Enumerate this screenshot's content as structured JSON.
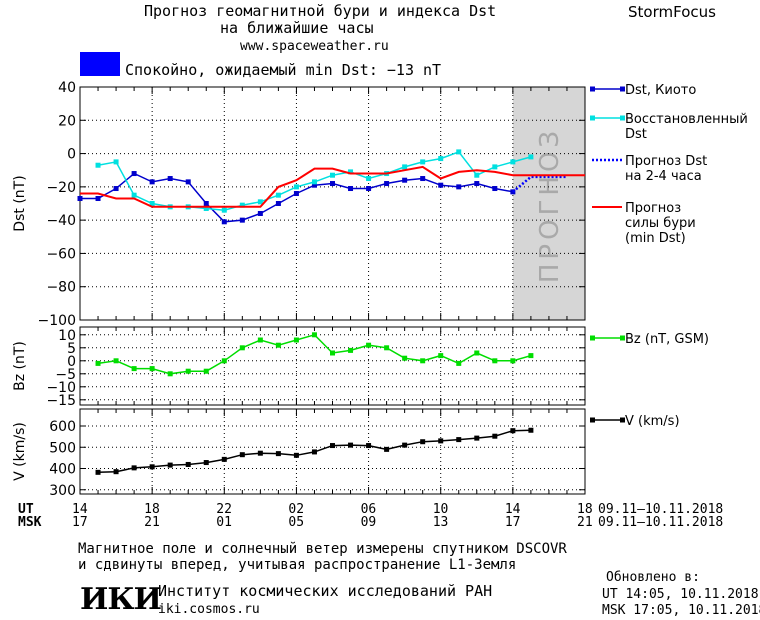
{
  "header": {
    "title_line1": "Прогноз геомагнитной бури и индекса Dst",
    "title_line2": "на ближайшие часы",
    "url": "www.spaceweather.ru",
    "brand": "StormFocus"
  },
  "status": {
    "text": "Спокойно, ожидаемый min Dst: −13 nT",
    "color": "#0000ff"
  },
  "forecast_watermark": "ПРОГНОЗ",
  "footer": {
    "note_line1": "Магнитное поле и солнечный ветер измерены спутником DSCOVR",
    "note_line2": "и сдвинуты вперед, учитывая распространение L1-Земля",
    "logo_text": "ИКИ",
    "institute": "Институт космических исследований РАН",
    "institute_url": "iki.cosmos.ru",
    "updated_label": "Обновлено в:",
    "updated_ut": "UT   14:05, 10.11.2018",
    "updated_msk": "MSK 17:05, 10.11.2018"
  },
  "time_axis": {
    "ut_label": "UT",
    "msk_label": "MSK",
    "ut_ticks": [
      "14",
      "18",
      "22",
      "02",
      "06",
      "10",
      "14",
      "18"
    ],
    "msk_ticks": [
      "17",
      "21",
      "01",
      "05",
      "09",
      "13",
      "17",
      "21"
    ],
    "ut_range": "09.11–10.11.2018",
    "msk_range": "09.11–10.11.2018"
  },
  "chart_data": [
    {
      "type": "line",
      "ylabel": "Dst (nT)",
      "ylim": [
        -100,
        40
      ],
      "yticks": [
        40,
        20,
        0,
        -20,
        -40,
        -60,
        -80,
        -100
      ],
      "x_range_hours": [
        0,
        28
      ],
      "forecast_region_hours": [
        24,
        28
      ],
      "series": [
        {
          "name": "Dst, Киото",
          "color": "#0000cc",
          "x": [
            0,
            1,
            2,
            3,
            4,
            5,
            6,
            7,
            8,
            9,
            10,
            11,
            12,
            13,
            14,
            15,
            16,
            17,
            18,
            19,
            20,
            21,
            22,
            23,
            24
          ],
          "values": [
            -27,
            -27,
            -21,
            -12,
            -17,
            -15,
            -17,
            -30,
            -41,
            -40,
            -36,
            -30,
            -24,
            -19,
            -18,
            -21,
            -21,
            -18,
            -16,
            -15,
            -19,
            -20,
            -18,
            -21,
            -23
          ]
        },
        {
          "name": "Восстановленный Dst",
          "color": "#00e0e0",
          "x": [
            1,
            2,
            3,
            4,
            5,
            6,
            7,
            8,
            9,
            10,
            11,
            12,
            13,
            14,
            15,
            16,
            17,
            18,
            19,
            20,
            21,
            22,
            23,
            24,
            25
          ],
          "values": [
            -7,
            -5,
            -25,
            -30,
            -32,
            -32,
            -33,
            -34,
            -31,
            -29,
            -25,
            -20,
            -17,
            -13,
            -11,
            -15,
            -12,
            -8,
            -5,
            -3,
            1,
            -13,
            -8,
            -5,
            -2
          ]
        },
        {
          "name": "Прогноз Dst на 2-4 часа",
          "color": "#0000ff",
          "style": "dotted",
          "x": [
            24,
            25,
            26,
            27
          ],
          "values": [
            -23,
            -14,
            -14,
            -14
          ]
        },
        {
          "name": "Прогноз силы бури (min Dst)",
          "color": "#ff0000",
          "x": [
            0,
            1,
            2,
            3,
            4,
            5,
            6,
            7,
            8,
            9,
            10,
            11,
            12,
            13,
            14,
            15,
            16,
            17,
            18,
            19,
            20,
            21,
            22,
            23,
            24,
            25,
            26,
            28
          ],
          "values": [
            -24,
            -24,
            -27,
            -27,
            -32,
            -32,
            -32,
            -32,
            -32,
            -32,
            -32,
            -20,
            -16,
            -9,
            -9,
            -12,
            -12,
            -12,
            -10,
            -8,
            -15,
            -11,
            -10,
            -11,
            -13,
            -13,
            -13,
            -13
          ]
        }
      ],
      "legend": [
        "Dst, Киото",
        "Восстановленный Dst",
        "Прогноз Dst на 2-4 часа",
        "Прогноз силы бури (min Dst)"
      ]
    },
    {
      "type": "line",
      "ylabel": "Bz (nT)",
      "ylim": [
        -17,
        13
      ],
      "yticks": [
        10,
        5,
        0,
        -5,
        -10,
        -15
      ],
      "series": [
        {
          "name": "Bz (nT, GSM)",
          "color": "#00dd00",
          "x": [
            1,
            2,
            3,
            4,
            5,
            6,
            7,
            8,
            9,
            10,
            11,
            12,
            13,
            14,
            15,
            16,
            17,
            18,
            19,
            20,
            21,
            22,
            23,
            24,
            25
          ],
          "values": [
            -1,
            0,
            -3,
            -3,
            -5,
            -4,
            -4,
            0,
            5,
            8,
            6,
            8,
            10,
            3,
            4,
            6,
            5,
            1,
            0,
            2,
            -1,
            3,
            0,
            0,
            2
          ]
        }
      ]
    },
    {
      "type": "line",
      "ylabel": "V (km/s)",
      "ylim": [
        280,
        680
      ],
      "yticks": [
        600,
        500,
        400,
        300
      ],
      "series": [
        {
          "name": "V (km/s)",
          "color": "#000000",
          "x": [
            1,
            2,
            3,
            4,
            5,
            6,
            7,
            8,
            9,
            10,
            11,
            12,
            13,
            14,
            15,
            16,
            17,
            18,
            19,
            20,
            21,
            22,
            23,
            24,
            25
          ],
          "values": [
            382,
            385,
            403,
            408,
            416,
            419,
            428,
            443,
            465,
            472,
            470,
            462,
            478,
            508,
            510,
            508,
            490,
            510,
            526,
            530,
            536,
            543,
            552,
            578,
            580
          ]
        }
      ]
    }
  ]
}
